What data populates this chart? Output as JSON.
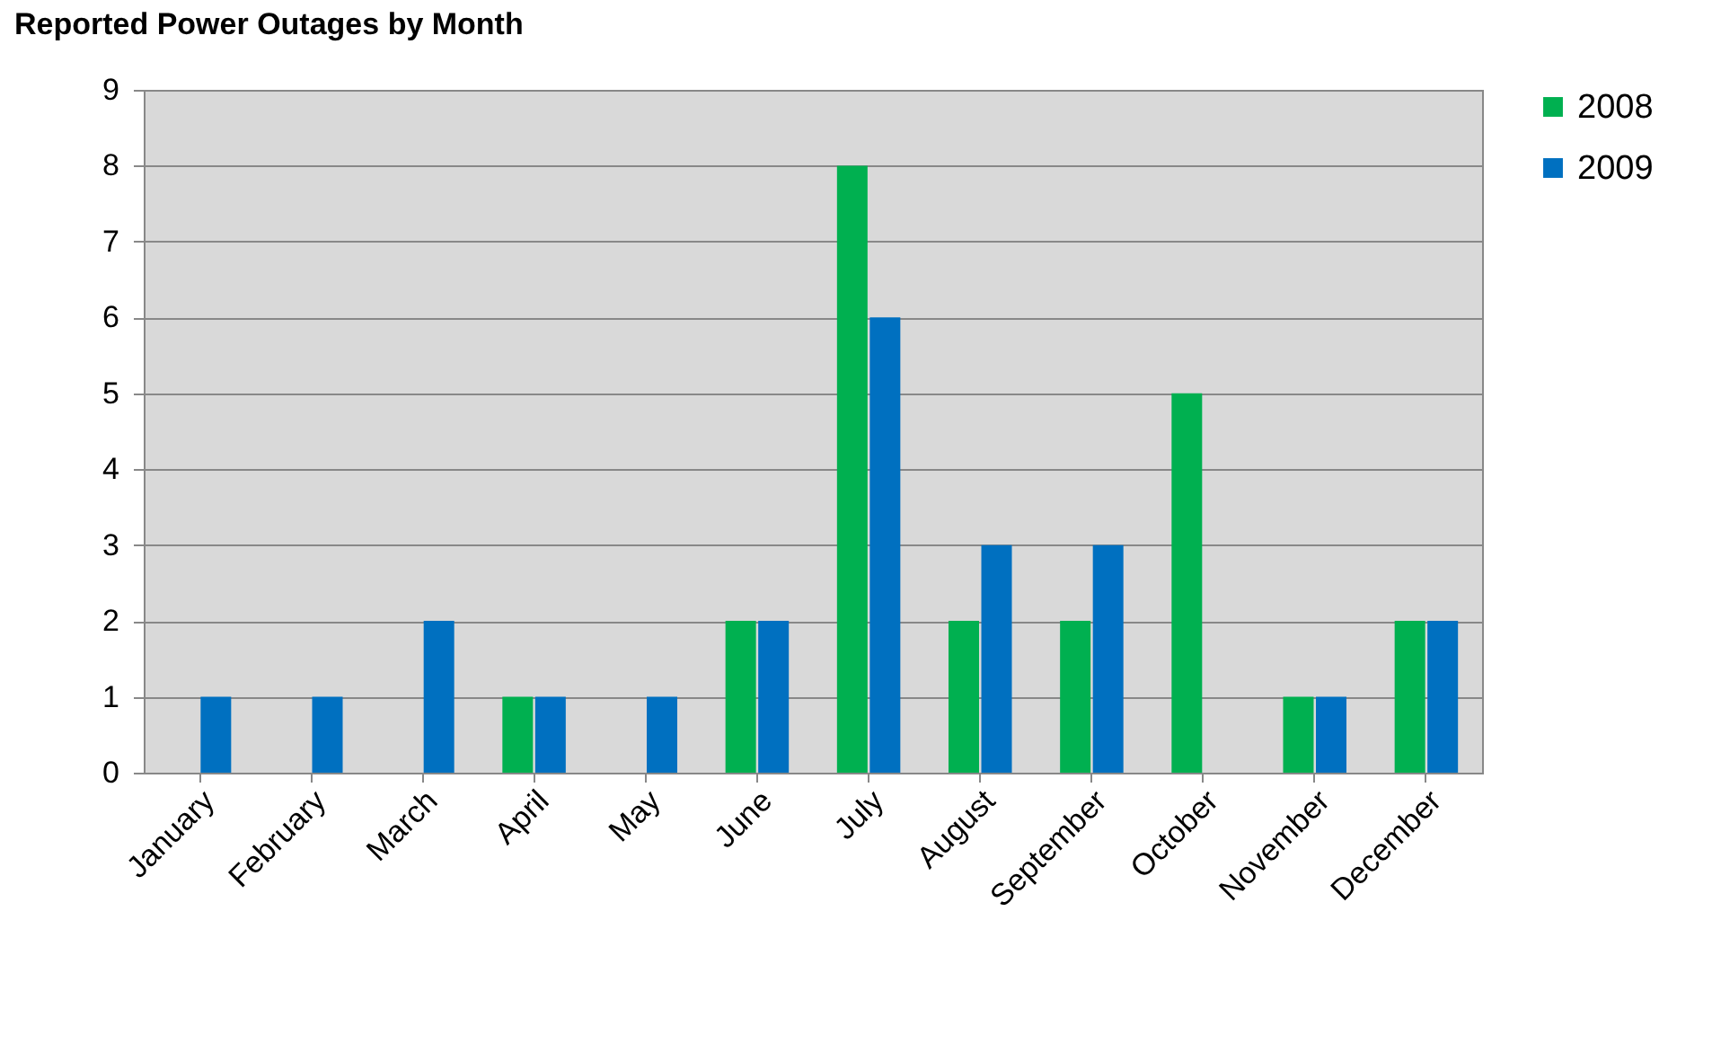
{
  "chart_data": {
    "type": "bar",
    "title": "Reported Power Outages by Month",
    "categories": [
      "January",
      "February",
      "March",
      "April",
      "May",
      "June",
      "July",
      "August",
      "September",
      "October",
      "November",
      "December"
    ],
    "series": [
      {
        "name": "2008",
        "color": "#00b050",
        "values": [
          0,
          0,
          0,
          1,
          0,
          2,
          8,
          2,
          2,
          5,
          1,
          2
        ]
      },
      {
        "name": "2009",
        "color": "#0070c0",
        "values": [
          1,
          1,
          2,
          1,
          1,
          2,
          6,
          3,
          3,
          0,
          1,
          2
        ]
      }
    ],
    "ylim": [
      0,
      9
    ],
    "yticks": [
      0,
      1,
      2,
      3,
      4,
      5,
      6,
      7,
      8,
      9
    ],
    "grid": "y",
    "legend": "right"
  }
}
